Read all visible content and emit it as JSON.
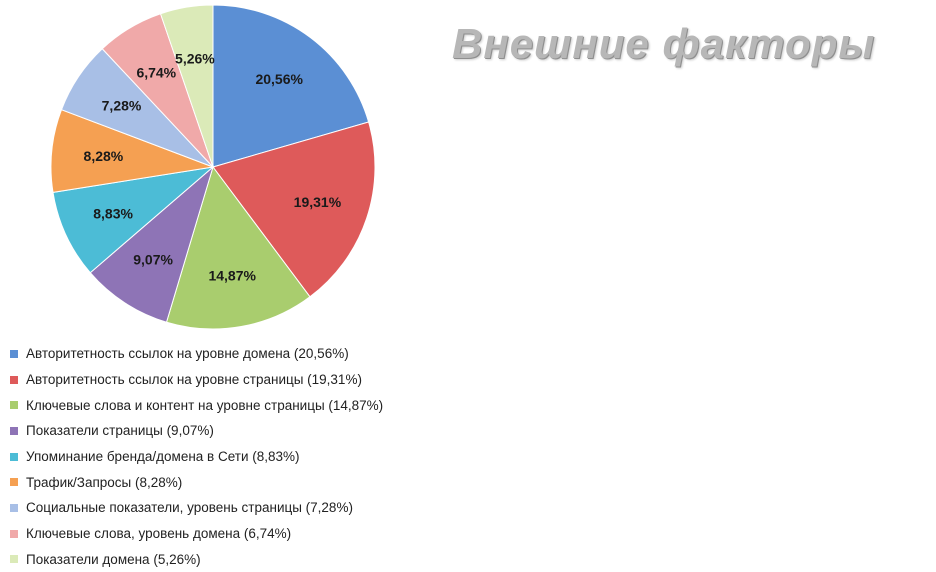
{
  "chart_data": {
    "type": "pie",
    "title": "Внешние факторы",
    "slices": [
      {
        "label": "20,56%",
        "value": 20.56,
        "color": "#5b8fd4",
        "legend": "Авторитетность ссылок на уровне домена (20,56%)"
      },
      {
        "label": "19,31%",
        "value": 19.31,
        "color": "#de5a5a",
        "legend": "Авторитетность ссылок на уровне страницы (19,31%)"
      },
      {
        "label": "14,87%",
        "value": 14.87,
        "color": "#a9cd6e",
        "legend": "Ключевые слова и контент на уровне страницы (14,87%)"
      },
      {
        "label": "9,07%",
        "value": 9.07,
        "color": "#8e74b6",
        "legend": "Показатели страницы (9,07%)"
      },
      {
        "label": "8,83%",
        "value": 8.83,
        "color": "#4cbcd6",
        "legend": "Упоминание бренда/домена в Сети (8,83%)"
      },
      {
        "label": "8,28%",
        "value": 8.28,
        "color": "#f5a052",
        "legend": "Трафик/Запросы (8,28%)"
      },
      {
        "label": "7,28%",
        "value": 7.28,
        "color": "#a8bfe6",
        "legend": "Социальные показатели, уровень страницы (7,28%)"
      },
      {
        "label": "6,74%",
        "value": 6.74,
        "color": "#f0a9a9",
        "legend": "Ключевые слова, уровень домена (6,74%)"
      },
      {
        "label": "5,26%",
        "value": 5.26,
        "color": "#dbeab8",
        "legend": "Показатели домена (5,26%)"
      }
    ],
    "legend_position": "bottom-left"
  }
}
